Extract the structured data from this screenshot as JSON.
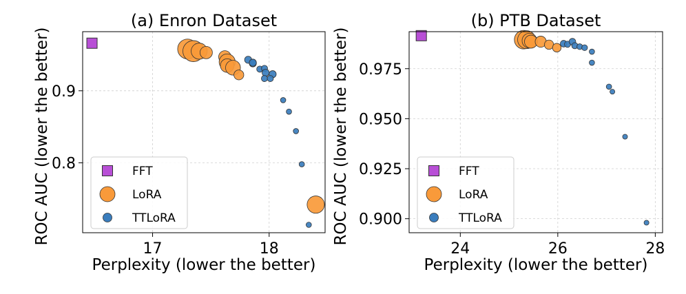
{
  "chart_data": [
    {
      "type": "scatter",
      "title": "(a) Enron Dataset",
      "xlabel": "Perplexity (lower the better)",
      "ylabel": "ROC AUC (lower the better)",
      "xlim": [
        16.4,
        18.48
      ],
      "ylim": [
        0.703,
        0.982
      ],
      "xticks": [
        17,
        18
      ],
      "yticks": [
        0.8,
        0.9
      ],
      "xtick_labels": [
        "17",
        "18"
      ],
      "ytick_labels": [
        "0.8",
        "0.9"
      ],
      "grid": true,
      "legend_position": "lower-left",
      "series": [
        {
          "name": "FFT",
          "marker": "square",
          "color": "#b84fd6",
          "points": [
            {
              "x": 16.48,
              "y": 0.966,
              "s": 1
            }
          ]
        },
        {
          "name": "LoRA",
          "marker": "circle",
          "color": "#f99a3a",
          "points": [
            {
              "x": 17.3,
              "y": 0.958,
              "s": 1.6
            },
            {
              "x": 17.35,
              "y": 0.955,
              "s": 1.7
            },
            {
              "x": 17.4,
              "y": 0.955,
              "s": 1.3
            },
            {
              "x": 17.46,
              "y": 0.953,
              "s": 1.0
            },
            {
              "x": 17.62,
              "y": 0.947,
              "s": 1.0
            },
            {
              "x": 17.64,
              "y": 0.94,
              "s": 1.3
            },
            {
              "x": 17.64,
              "y": 0.935,
              "s": 1.1
            },
            {
              "x": 17.69,
              "y": 0.932,
              "s": 1.2
            },
            {
              "x": 17.74,
              "y": 0.922,
              "s": 0.8
            },
            {
              "x": 18.4,
              "y": 0.742,
              "s": 1.4
            }
          ]
        },
        {
          "name": "TTLoRA",
          "marker": "circle",
          "color": "#3a7dbd",
          "points": [
            {
              "x": 17.82,
              "y": 0.943,
              "s": 0.8
            },
            {
              "x": 17.86,
              "y": 0.938,
              "s": 0.8
            },
            {
              "x": 17.86,
              "y": 0.939,
              "s": 0.8
            },
            {
              "x": 17.92,
              "y": 0.93,
              "s": 0.7
            },
            {
              "x": 17.96,
              "y": 0.931,
              "s": 0.7
            },
            {
              "x": 17.97,
              "y": 0.925,
              "s": 0.8
            },
            {
              "x": 18.03,
              "y": 0.923,
              "s": 0.8
            },
            {
              "x": 17.96,
              "y": 0.917,
              "s": 0.7
            },
            {
              "x": 18.01,
              "y": 0.917,
              "s": 0.7
            },
            {
              "x": 18.12,
              "y": 0.887,
              "s": 0.6
            },
            {
              "x": 18.17,
              "y": 0.871,
              "s": 0.6
            },
            {
              "x": 18.23,
              "y": 0.844,
              "s": 0.6
            },
            {
              "x": 18.28,
              "y": 0.798,
              "s": 0.6
            },
            {
              "x": 18.34,
              "y": 0.714,
              "s": 0.6
            }
          ]
        }
      ]
    },
    {
      "type": "scatter",
      "title": "(b) PTB Dataset",
      "xlabel": "Perplexity (lower the better)",
      "ylabel": "ROC AUC (lower the better)",
      "xlim": [
        22.95,
        28.15
      ],
      "ylim": [
        0.893,
        0.9935
      ],
      "xticks": [
        24,
        26,
        28
      ],
      "yticks": [
        0.9,
        0.925,
        0.95,
        0.975
      ],
      "xtick_labels": [
        "24",
        "26",
        "28"
      ],
      "ytick_labels": [
        "0.900",
        "0.925",
        "0.950",
        "0.975"
      ],
      "grid": true,
      "legend_position": "lower-left",
      "series": [
        {
          "name": "FFT",
          "marker": "square",
          "color": "#b84fd6",
          "points": [
            {
              "x": 23.2,
              "y": 0.9915,
              "s": 1
            }
          ]
        },
        {
          "name": "LoRA",
          "marker": "circle",
          "color": "#f99a3a",
          "points": [
            {
              "x": 25.3,
              "y": 0.9895,
              "s": 1.5
            },
            {
              "x": 25.36,
              "y": 0.9895,
              "s": 1.45
            },
            {
              "x": 25.42,
              "y": 0.989,
              "s": 1.2
            },
            {
              "x": 25.45,
              "y": 0.9885,
              "s": 1.05
            },
            {
              "x": 25.65,
              "y": 0.9885,
              "s": 0.9
            },
            {
              "x": 25.82,
              "y": 0.987,
              "s": 0.75
            },
            {
              "x": 25.98,
              "y": 0.9855,
              "s": 0.7
            }
          ]
        },
        {
          "name": "TTLoRA",
          "marker": "circle",
          "color": "#3a7dbd",
          "points": [
            {
              "x": 26.12,
              "y": 0.9875,
              "s": 0.75
            },
            {
              "x": 26.2,
              "y": 0.9872,
              "s": 0.7
            },
            {
              "x": 26.3,
              "y": 0.9885,
              "s": 0.75
            },
            {
              "x": 26.35,
              "y": 0.9865,
              "s": 0.7
            },
            {
              "x": 26.45,
              "y": 0.986,
              "s": 0.65
            },
            {
              "x": 26.55,
              "y": 0.9855,
              "s": 0.65
            },
            {
              "x": 26.7,
              "y": 0.9835,
              "s": 0.6
            },
            {
              "x": 26.7,
              "y": 0.978,
              "s": 0.6
            },
            {
              "x": 27.05,
              "y": 0.966,
              "s": 0.6
            },
            {
              "x": 27.12,
              "y": 0.9635,
              "s": 0.55
            },
            {
              "x": 27.38,
              "y": 0.941,
              "s": 0.55
            },
            {
              "x": 27.82,
              "y": 0.898,
              "s": 0.55
            }
          ]
        }
      ]
    }
  ]
}
